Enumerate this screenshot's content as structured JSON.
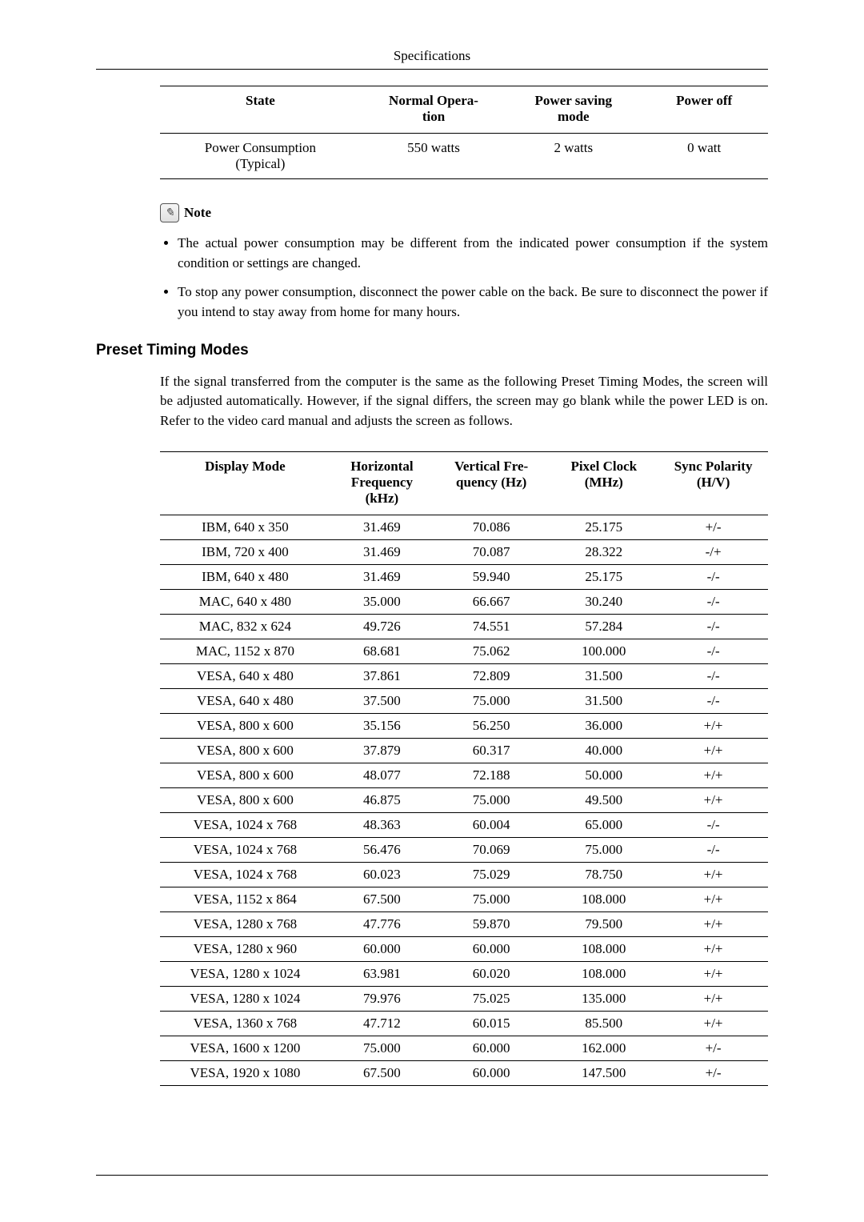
{
  "header": {
    "title": "Specifications"
  },
  "power_table": {
    "headers": [
      "State",
      "Normal Opera-\ntion",
      "Power saving\nmode",
      "Power off"
    ],
    "rows": [
      [
        "Power Consumption\n(Typical)",
        "550 watts",
        "2 watts",
        "0 watt"
      ]
    ],
    "col_widths": [
      "33%",
      "24%",
      "22%",
      "21%"
    ]
  },
  "note": {
    "icon_glyph": "✎",
    "label": "Note",
    "items": [
      "The actual power consumption may be different from the indicated power consumption if the system condition or settings are changed.",
      "To stop any power consumption, disconnect the power cable on the back. Be sure to disconnect the power if you intend to stay away from home for many hours."
    ]
  },
  "section": {
    "title": "Preset Timing Modes",
    "intro": "If the signal transferred from the computer is the same as the following Preset Timing Modes, the screen will be adjusted automatically. However, if the signal differs, the screen may go blank while the power LED is on. Refer to the video card manual and adjusts the screen as follows."
  },
  "timing_table": {
    "headers": [
      "Display Mode",
      "Horizontal\nFrequency\n(kHz)",
      "Vertical Fre-\nquency (Hz)",
      "Pixel Clock\n(MHz)",
      "Sync Polarity\n(H/V)"
    ],
    "col_widths": [
      "28%",
      "17%",
      "19%",
      "18%",
      "18%"
    ],
    "rows": [
      [
        "IBM, 640 x 350",
        "31.469",
        "70.086",
        "25.175",
        "+/-"
      ],
      [
        "IBM, 720 x 400",
        "31.469",
        "70.087",
        "28.322",
        "-/+"
      ],
      [
        "IBM, 640 x 480",
        "31.469",
        "59.940",
        "25.175",
        "-/-"
      ],
      [
        "MAC, 640 x 480",
        "35.000",
        "66.667",
        "30.240",
        "-/-"
      ],
      [
        "MAC, 832 x 624",
        "49.726",
        "74.551",
        "57.284",
        "-/-"
      ],
      [
        "MAC, 1152 x 870",
        "68.681",
        "75.062",
        "100.000",
        "-/-"
      ],
      [
        "VESA, 640 x 480",
        "37.861",
        "72.809",
        "31.500",
        "-/-"
      ],
      [
        "VESA, 640 x 480",
        "37.500",
        "75.000",
        "31.500",
        "-/-"
      ],
      [
        "VESA, 800 x 600",
        "35.156",
        "56.250",
        "36.000",
        "+/+"
      ],
      [
        "VESA, 800 x 600",
        "37.879",
        "60.317",
        "40.000",
        "+/+"
      ],
      [
        "VESA, 800 x 600",
        "48.077",
        "72.188",
        "50.000",
        "+/+"
      ],
      [
        "VESA, 800 x 600",
        "46.875",
        "75.000",
        "49.500",
        "+/+"
      ],
      [
        "VESA, 1024 x 768",
        "48.363",
        "60.004",
        "65.000",
        "-/-"
      ],
      [
        "VESA, 1024 x 768",
        "56.476",
        "70.069",
        "75.000",
        "-/-"
      ],
      [
        "VESA, 1024 x 768",
        "60.023",
        "75.029",
        "78.750",
        "+/+"
      ],
      [
        "VESA, 1152 x 864",
        "67.500",
        "75.000",
        "108.000",
        "+/+"
      ],
      [
        "VESA, 1280 x 768",
        "47.776",
        "59.870",
        "79.500",
        "+/+"
      ],
      [
        "VESA, 1280 x 960",
        "60.000",
        "60.000",
        "108.000",
        "+/+"
      ],
      [
        "VESA, 1280 x 1024",
        "63.981",
        "60.020",
        "108.000",
        "+/+"
      ],
      [
        "VESA, 1280 x 1024",
        "79.976",
        "75.025",
        "135.000",
        "+/+"
      ],
      [
        "VESA, 1360 x 768",
        "47.712",
        "60.015",
        "85.500",
        "+/+"
      ],
      [
        "VESA, 1600 x 1200",
        "75.000",
        "60.000",
        "162.000",
        "+/-"
      ],
      [
        "VESA, 1920 x 1080",
        "67.500",
        "60.000",
        "147.500",
        "+/-"
      ]
    ]
  }
}
